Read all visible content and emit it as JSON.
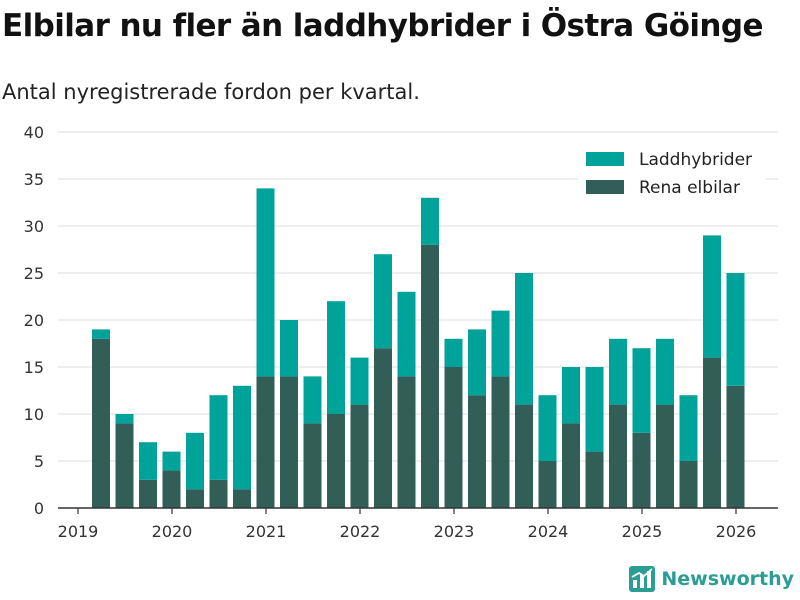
{
  "title": "Elbilar nu fler än laddhybrider i Östra Göinge",
  "subtitle": "Antal nyregistrerade fordon per kvartal.",
  "brand": "Newsworthy",
  "colors": {
    "laddhybrider": "#00a39a",
    "rena_elbilar": "#325e58",
    "grid": "#dcdcdc",
    "axis": "#333333",
    "brand": "#2a9d94"
  },
  "chart_data": {
    "type": "bar",
    "stacked": true,
    "title": "Elbilar nu fler än laddhybrider i Östra Göinge",
    "subtitle": "Antal nyregistrerade fordon per kvartal.",
    "xlabel": "",
    "ylabel": "",
    "ylim": [
      0,
      40
    ],
    "yticks": [
      0,
      5,
      10,
      15,
      20,
      25,
      30,
      35,
      40
    ],
    "xticks": [
      "2019",
      "2020",
      "2021",
      "2022",
      "2023",
      "2024",
      "2025",
      "2026"
    ],
    "grid": true,
    "legend_position": "top-right",
    "categories": [
      "2019 Q2",
      "2019 Q3",
      "2019 Q4",
      "2020 Q1",
      "2020 Q2",
      "2020 Q3",
      "2020 Q4",
      "2021 Q1",
      "2021 Q2",
      "2021 Q3",
      "2021 Q4",
      "2022 Q1",
      "2022 Q2",
      "2022 Q3",
      "2022 Q4",
      "2023 Q1",
      "2023 Q2",
      "2023 Q3",
      "2023 Q4",
      "2024 Q1",
      "2024 Q2",
      "2024 Q3",
      "2024 Q4",
      "2025 Q1",
      "2025 Q2",
      "2025 Q3",
      "2025 Q4",
      "2026 Q1"
    ],
    "series": [
      {
        "name": "Rena elbilar",
        "values": [
          18,
          9,
          3,
          4,
          2,
          3,
          2,
          14,
          14,
          9,
          10,
          11,
          17,
          14,
          28,
          15,
          12,
          14,
          11,
          5,
          9,
          6,
          11,
          8,
          11,
          5,
          16,
          13
        ]
      },
      {
        "name": "Laddhybrider",
        "values": [
          1,
          1,
          4,
          2,
          6,
          9,
          11,
          20,
          6,
          5,
          12,
          5,
          10,
          9,
          5,
          3,
          7,
          7,
          14,
          7,
          6,
          9,
          7,
          9,
          7,
          7,
          13,
          12
        ]
      }
    ]
  }
}
